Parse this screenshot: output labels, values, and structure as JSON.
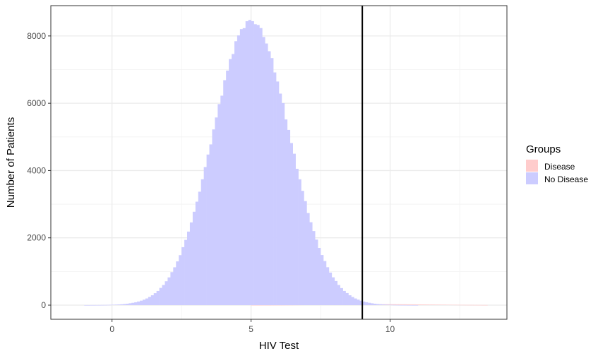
{
  "chart_data": {
    "type": "bar",
    "subtype": "histogram",
    "xlabel": "HIV Test",
    "ylabel": "Number of Patients",
    "xlim": [
      -2.2,
      14.2
    ],
    "ylim": [
      -420,
      8900
    ],
    "x_ticks": [
      0,
      5,
      10
    ],
    "x_tick_labels": [
      "0",
      "5",
      "10"
    ],
    "y_ticks": [
      0,
      2000,
      4000,
      6000,
      8000
    ],
    "y_tick_labels": [
      "0",
      "2000",
      "4000",
      "6000",
      "8000"
    ],
    "grid": true,
    "bin_width": 0.1,
    "reference_line": {
      "x": 9,
      "color": "#000000"
    },
    "legend": {
      "title": "Groups",
      "position": "right",
      "entries": [
        {
          "label": "Disease",
          "color": "#ffcccc"
        },
        {
          "label": "No Disease",
          "color": "#ccccff"
        }
      ]
    },
    "series": [
      {
        "name": "No Disease",
        "color": "#ccccff",
        "type": "normal",
        "mean": 5.0,
        "sd": 1.37,
        "peak": 8450,
        "range": [
          -1.5,
          11.5
        ]
      },
      {
        "name": "Disease",
        "color": "#ffcccc",
        "type": "normal",
        "mean": 9.5,
        "sd": 2.0,
        "peak": 28,
        "range": [
          5.0,
          13.5
        ]
      }
    ]
  }
}
